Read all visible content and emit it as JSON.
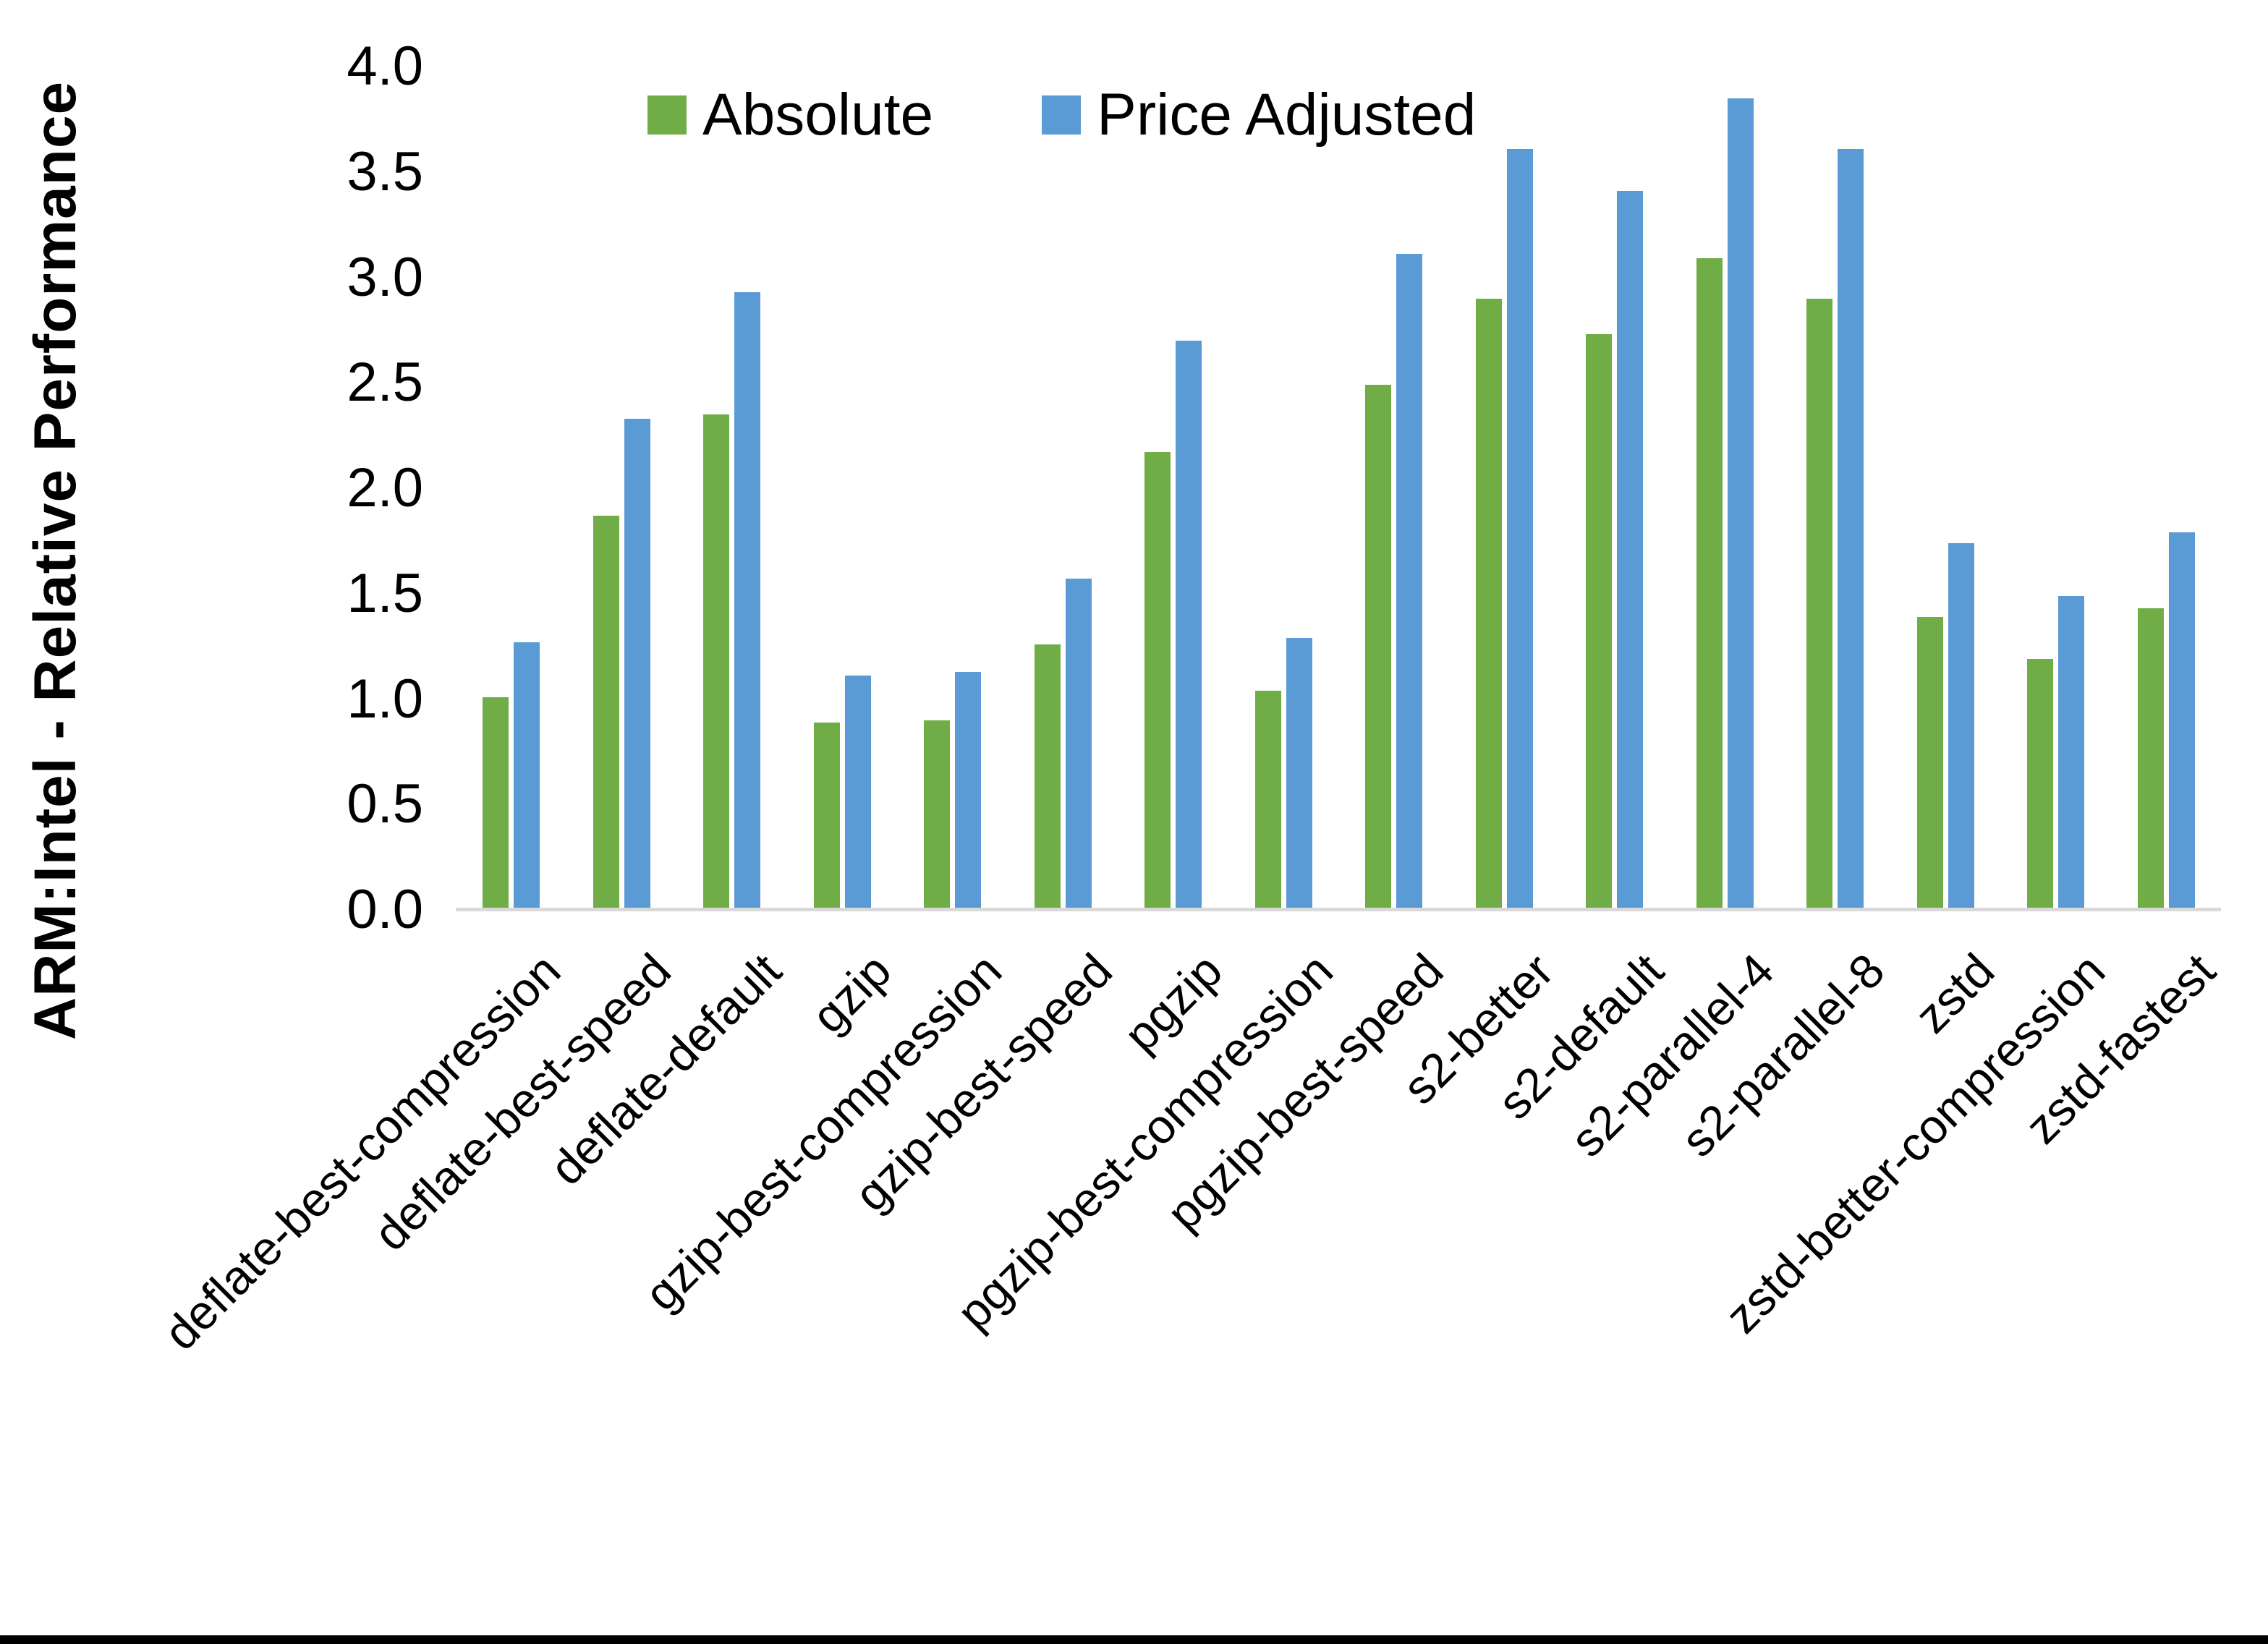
{
  "chart_data": {
    "type": "bar",
    "title": "",
    "xlabel": "",
    "ylabel": "ARM:Intel - Relative Performance",
    "ylim": [
      0.0,
      4.0
    ],
    "ytick_step": 0.5,
    "ytick_labels": [
      "0.0",
      "0.5",
      "1.0",
      "1.5",
      "2.0",
      "2.5",
      "3.0",
      "3.5",
      "4.0"
    ],
    "grid": false,
    "legend_position": "top-center",
    "background_color": "#FFFFFF",
    "axis_line_color": "#D9D9D9",
    "text_color": "#000000",
    "categories": [
      "deflate-best-compression",
      "deflate-best-speed",
      "deflate-default",
      "gzip",
      "gzip-best-compression",
      "gzip-best-speed",
      "pgzip",
      "pgzip-best-compression",
      "pgzip-best-speed",
      "s2-better",
      "s2-default",
      "s2-parallel-4",
      "s2-parallel-8",
      "zstd",
      "zstd-better-compression",
      "zstd-fastest"
    ],
    "series": [
      {
        "name": "Absolute",
        "color": "#70AD47",
        "values": [
          1.01,
          1.87,
          2.35,
          0.89,
          0.9,
          1.26,
          2.17,
          1.04,
          2.49,
          2.9,
          2.73,
          3.09,
          2.9,
          1.39,
          1.19,
          1.43
        ]
      },
      {
        "name": "Price Adjusted",
        "color": "#5B9BD5",
        "values": [
          1.27,
          2.33,
          2.93,
          1.11,
          1.13,
          1.57,
          2.7,
          1.29,
          3.11,
          3.61,
          3.41,
          3.85,
          3.61,
          1.74,
          1.49,
          1.79
        ]
      }
    ]
  }
}
